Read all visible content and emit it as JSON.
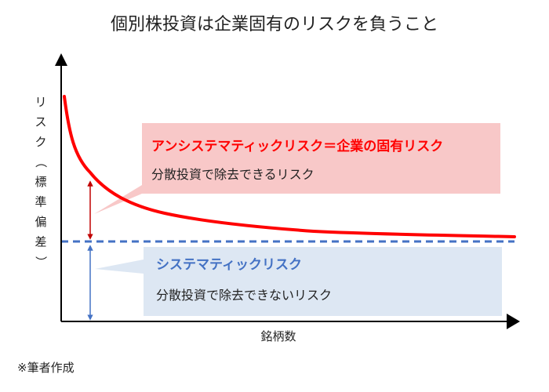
{
  "title": "個別株投資は企業固有のリスクを負うこと",
  "yaxis_label": "リスク（標準偏差）",
  "xaxis_label": "銘柄数",
  "unsystematic": {
    "title": "アンシステマティックリスク＝企業の固有リスク",
    "description": "分散投資で除去できるリスク"
  },
  "systematic": {
    "title": "システマティックリスク",
    "description": "分散投資で除去できないリスク"
  },
  "footnote": "※筆者作成",
  "colors": {
    "curve": "#ff0000",
    "dashed_line": "#4472c4",
    "unsystematic_box": "#f8c8c8",
    "systematic_box": "#dde7f3",
    "axis": "#000000"
  }
}
